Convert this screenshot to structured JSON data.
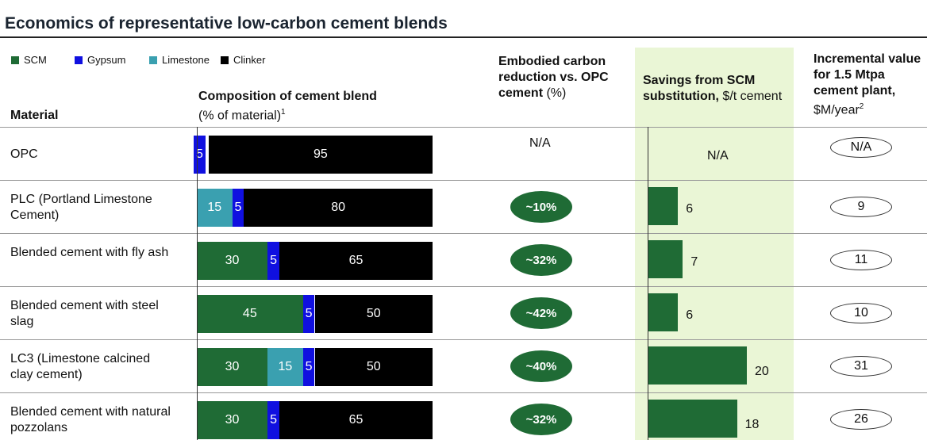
{
  "title": "Economics of representative low-carbon cement blends",
  "colors": {
    "SCM": "#1f6b35",
    "Gypsum": "#1010e0",
    "Limestone": "#3aa0b0",
    "Clinker": "#000000"
  },
  "legend": [
    "SCM",
    "Gypsum",
    "Limestone",
    "Clinker"
  ],
  "headers": {
    "material": "Material",
    "composition": "Composition of cement blend",
    "composition_sub": "(% of material)",
    "composition_note": "1",
    "embodied": "Embodied carbon reduction vs. OPC cement",
    "embodied_unit": " (%)",
    "savings": "Savings from SCM substitution,",
    "savings_unit": " $/t cement",
    "incremental": "Incremental value for 1.5 Mtpa cement plant,",
    "incremental_unit": " $M/year",
    "incremental_note": "2"
  },
  "chart_data": {
    "type": "table",
    "rows": [
      {
        "material": "OPC",
        "composition": {
          "SCM": 0,
          "Limestone": 0,
          "Gypsum": 5,
          "Clinker": 95
        },
        "reduction": "N/A",
        "savings": null,
        "savings_label": "N/A",
        "incremental": "N/A"
      },
      {
        "material": "PLC (Portland Limestone Cement)",
        "composition": {
          "SCM": 0,
          "Limestone": 15,
          "Gypsum": 5,
          "Clinker": 80
        },
        "reduction": "~10%",
        "savings": 6,
        "savings_label": "6",
        "incremental": "9"
      },
      {
        "material": "Blended cement with fly ash",
        "composition": {
          "SCM": 30,
          "Limestone": 0,
          "Gypsum": 5,
          "Clinker": 65
        },
        "reduction": "~32%",
        "savings": 7,
        "savings_label": "7",
        "incremental": "11"
      },
      {
        "material": "Blended cement with steel slag",
        "composition": {
          "SCM": 45,
          "Limestone": 0,
          "Gypsum": 5,
          "Clinker": 50
        },
        "reduction": "~42%",
        "savings": 6,
        "savings_label": "6",
        "incremental": "10"
      },
      {
        "material": "LC3 (Limestone calcined clay cement)",
        "composition": {
          "SCM": 30,
          "Limestone": 15,
          "Gypsum": 5,
          "Clinker": 50
        },
        "reduction": "~40%",
        "savings": 20,
        "savings_label": "20",
        "incremental": "31"
      },
      {
        "material": "Blended cement with natural pozzolans",
        "composition": {
          "SCM": 30,
          "Limestone": 0,
          "Gypsum": 5,
          "Clinker": 65
        },
        "reduction": "~32%",
        "savings": 18,
        "savings_label": "18",
        "incremental": "26"
      }
    ]
  }
}
